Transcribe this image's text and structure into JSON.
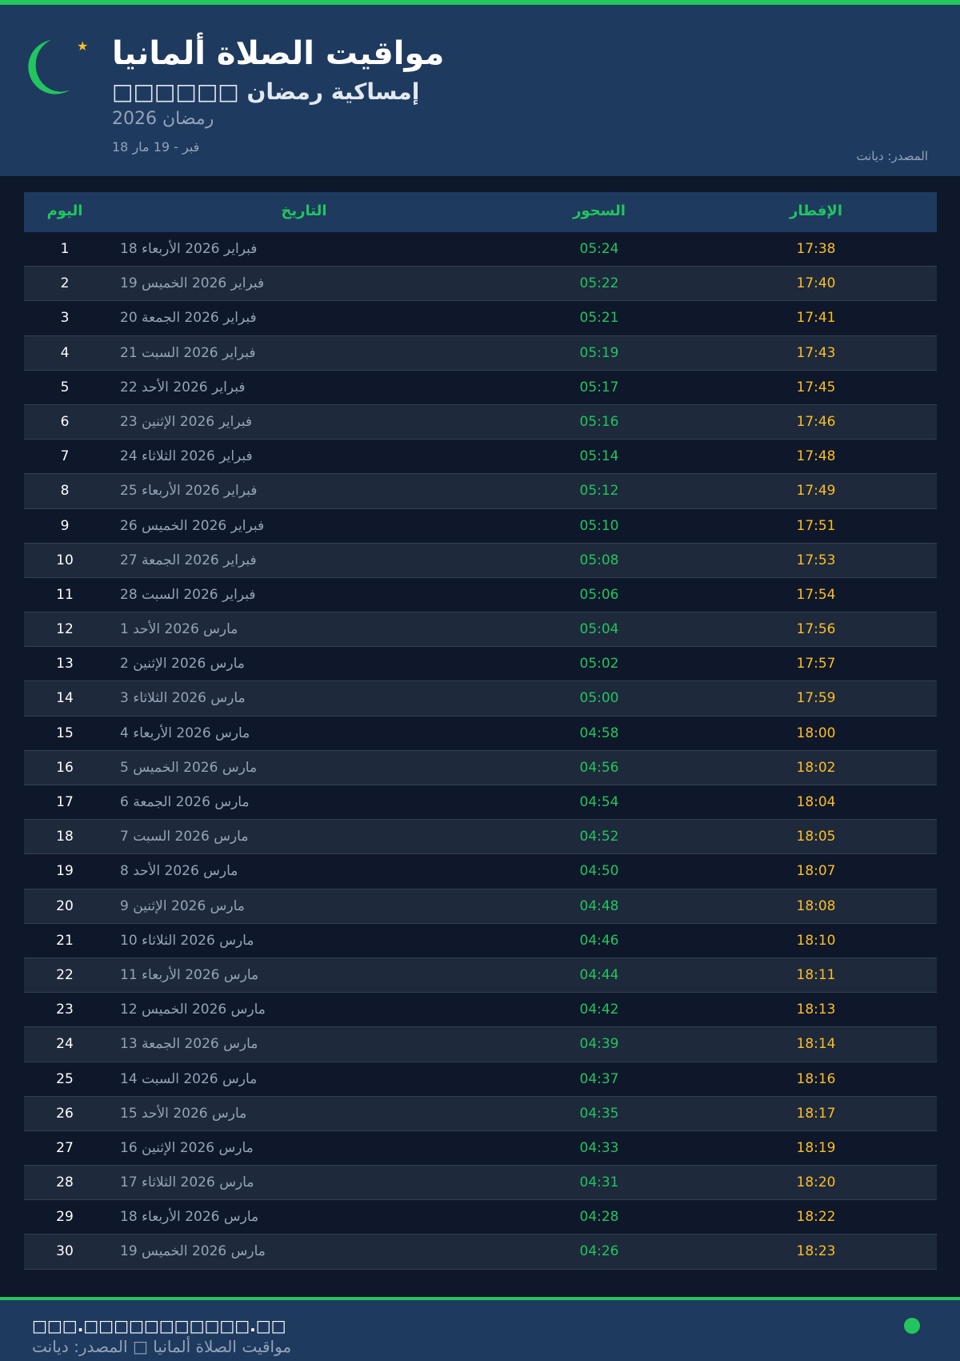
{
  "header": {
    "title": "مواقيت الصلاة ألمانيا",
    "subtitle": "□□□□□□ إمساكية رمضان",
    "year": "رمضان 2026",
    "range": "18 فبر - 19 مار",
    "source": "المصدر: ديانت"
  },
  "colors": {
    "accent": "#22c55e",
    "iftar": "#fbbf24",
    "header_bg": "#1e3a5f",
    "page_bg": "#0f172a"
  },
  "table": {
    "headers": {
      "day": "اليوم",
      "date": "التاريخ",
      "suhoor": "السحور",
      "iftar": "الإفطار"
    },
    "rows": [
      {
        "day": "1",
        "date": "18 فبراير 2026 الأربعاء",
        "suhoor": "05:24",
        "iftar": "17:38"
      },
      {
        "day": "2",
        "date": "19 فبراير 2026 الخميس",
        "suhoor": "05:22",
        "iftar": "17:40"
      },
      {
        "day": "3",
        "date": "20 فبراير 2026 الجمعة",
        "suhoor": "05:21",
        "iftar": "17:41"
      },
      {
        "day": "4",
        "date": "21 فبراير 2026 السبت",
        "suhoor": "05:19",
        "iftar": "17:43"
      },
      {
        "day": "5",
        "date": "22 فبراير 2026 الأحد",
        "suhoor": "05:17",
        "iftar": "17:45"
      },
      {
        "day": "6",
        "date": "23 فبراير 2026 الإثنين",
        "suhoor": "05:16",
        "iftar": "17:46"
      },
      {
        "day": "7",
        "date": "24 فبراير 2026 الثلاثاء",
        "suhoor": "05:14",
        "iftar": "17:48"
      },
      {
        "day": "8",
        "date": "25 فبراير 2026 الأربعاء",
        "suhoor": "05:12",
        "iftar": "17:49"
      },
      {
        "day": "9",
        "date": "26 فبراير 2026 الخميس",
        "suhoor": "05:10",
        "iftar": "17:51"
      },
      {
        "day": "10",
        "date": "27 فبراير 2026 الجمعة",
        "suhoor": "05:08",
        "iftar": "17:53"
      },
      {
        "day": "11",
        "date": "28 فبراير 2026 السبت",
        "suhoor": "05:06",
        "iftar": "17:54"
      },
      {
        "day": "12",
        "date": "1 مارس 2026 الأحد",
        "suhoor": "05:04",
        "iftar": "17:56"
      },
      {
        "day": "13",
        "date": "2 مارس 2026 الإثنين",
        "suhoor": "05:02",
        "iftar": "17:57"
      },
      {
        "day": "14",
        "date": "3 مارس 2026 الثلاثاء",
        "suhoor": "05:00",
        "iftar": "17:59"
      },
      {
        "day": "15",
        "date": "4 مارس 2026 الأربعاء",
        "suhoor": "04:58",
        "iftar": "18:00"
      },
      {
        "day": "16",
        "date": "5 مارس 2026 الخميس",
        "suhoor": "04:56",
        "iftar": "18:02"
      },
      {
        "day": "17",
        "date": "6 مارس 2026 الجمعة",
        "suhoor": "04:54",
        "iftar": "18:04"
      },
      {
        "day": "18",
        "date": "7 مارس 2026 السبت",
        "suhoor": "04:52",
        "iftar": "18:05"
      },
      {
        "day": "19",
        "date": "8 مارس 2026 الأحد",
        "suhoor": "04:50",
        "iftar": "18:07"
      },
      {
        "day": "20",
        "date": "9 مارس 2026 الإثنين",
        "suhoor": "04:48",
        "iftar": "18:08"
      },
      {
        "day": "21",
        "date": "10 مارس 2026 الثلاثاء",
        "suhoor": "04:46",
        "iftar": "18:10"
      },
      {
        "day": "22",
        "date": "11 مارس 2026 الأربعاء",
        "suhoor": "04:44",
        "iftar": "18:11"
      },
      {
        "day": "23",
        "date": "12 مارس 2026 الخميس",
        "suhoor": "04:42",
        "iftar": "18:13"
      },
      {
        "day": "24",
        "date": "13 مارس 2026 الجمعة",
        "suhoor": "04:39",
        "iftar": "18:14"
      },
      {
        "day": "25",
        "date": "14 مارس 2026 السبت",
        "suhoor": "04:37",
        "iftar": "18:16"
      },
      {
        "day": "26",
        "date": "15 مارس 2026 الأحد",
        "suhoor": "04:35",
        "iftar": "18:17"
      },
      {
        "day": "27",
        "date": "16 مارس 2026 الإثنين",
        "suhoor": "04:33",
        "iftar": "18:19"
      },
      {
        "day": "28",
        "date": "17 مارس 2026 الثلاثاء",
        "suhoor": "04:31",
        "iftar": "18:20"
      },
      {
        "day": "29",
        "date": "18 مارس 2026 الأربعاء",
        "suhoor": "04:28",
        "iftar": "18:22"
      },
      {
        "day": "30",
        "date": "19 مارس 2026 الخميس",
        "suhoor": "04:26",
        "iftar": "18:23"
      }
    ]
  },
  "footer": {
    "url": "□□□.□□□□□□□□□□□.□□",
    "text": "مواقيت الصلاة ألمانيا □ المصدر: ديانت"
  }
}
